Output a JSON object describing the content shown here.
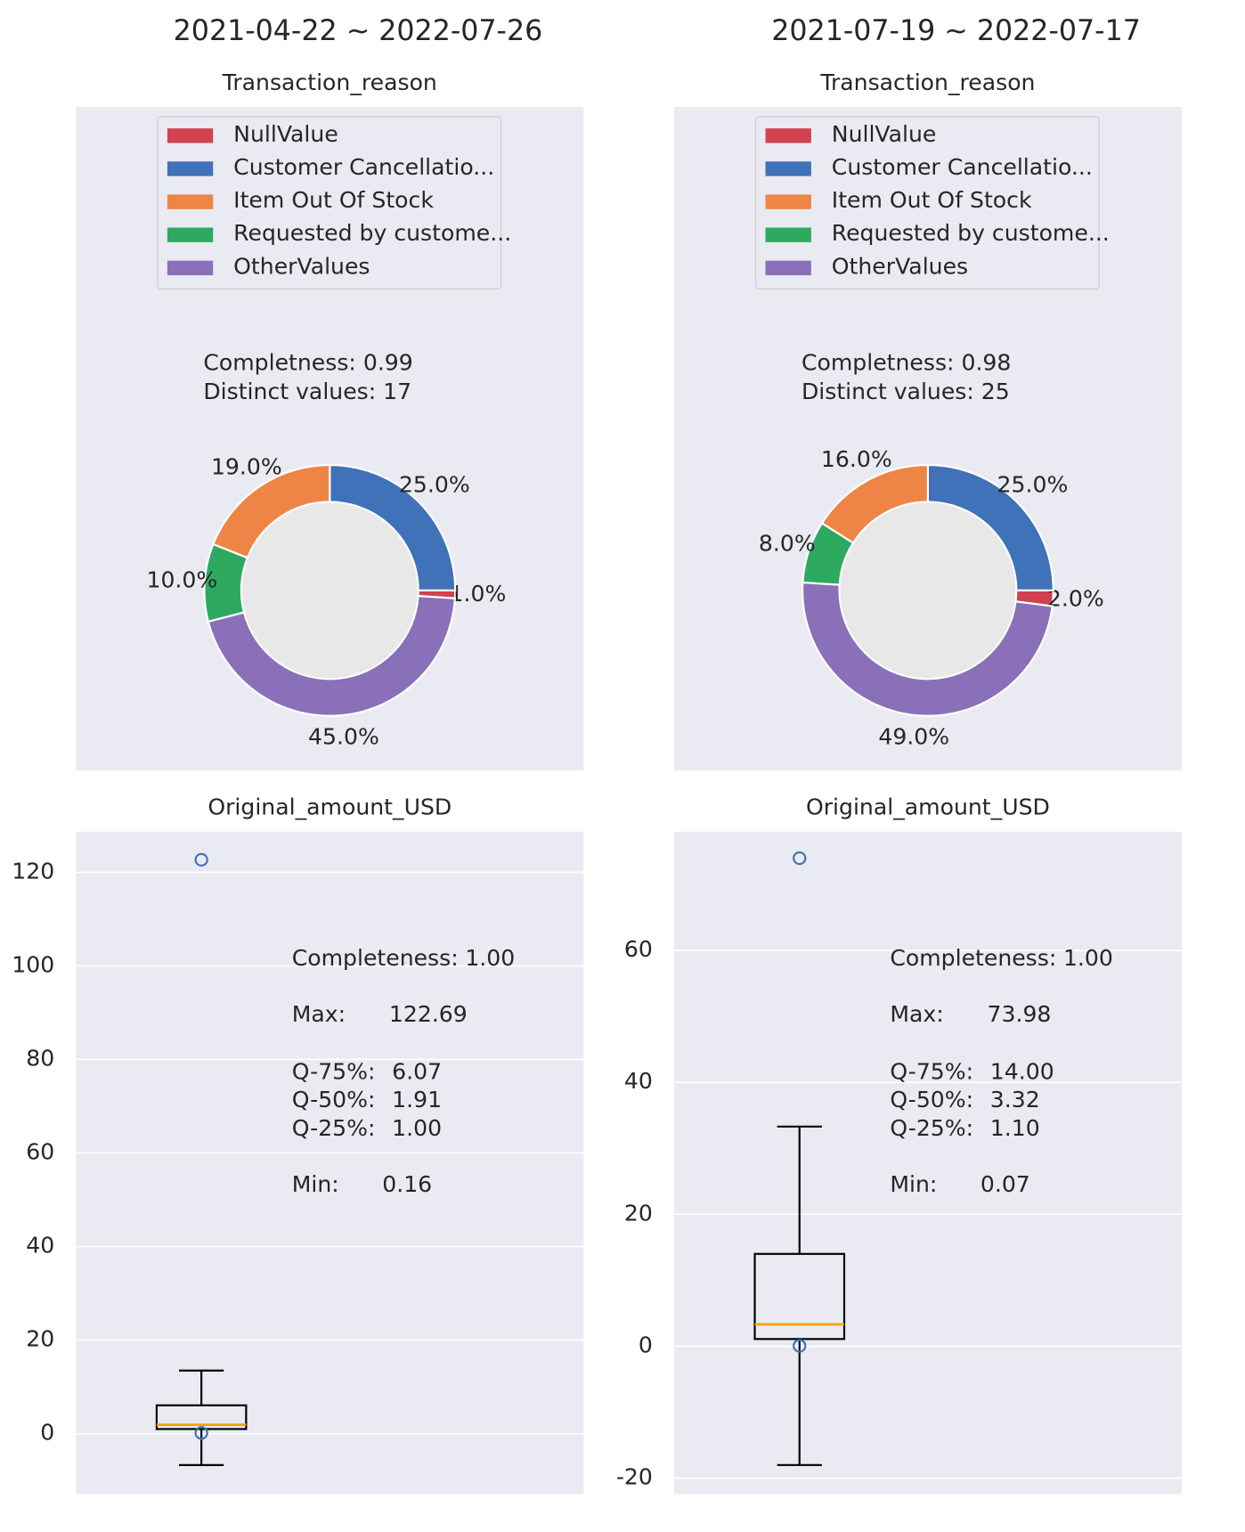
{
  "chart_data": [
    {
      "type": "pie",
      "suptitle": "2021-04-22 ~ 2022-07-26",
      "title": "Transaction_reason",
      "categories": [
        "NullValue",
        "Customer Cancellatio...",
        "Item Out Of Stock",
        "Requested by custome...",
        "OtherValues"
      ],
      "values": [
        1,
        25,
        19,
        10,
        45
      ],
      "value_labels": [
        "1.0%",
        "25.0%",
        "19.0%",
        "10.0%",
        "45.0%"
      ],
      "colors": [
        "#d0424f",
        "#3f72b8",
        "#ee8546",
        "#2eaa60",
        "#8a70b8"
      ],
      "annotations": [
        "Completness: 0.99",
        "Distinct values: 17"
      ]
    },
    {
      "type": "pie",
      "suptitle": "2021-07-19 ~ 2022-07-17",
      "title": "Transaction_reason",
      "categories": [
        "NullValue",
        "Customer Cancellatio...",
        "Item Out Of Stock",
        "Requested by custome...",
        "OtherValues"
      ],
      "values": [
        2,
        25,
        16,
        8,
        49
      ],
      "value_labels": [
        "2.0%",
        "25.0%",
        "16.0%",
        "8.0%",
        "49.0%"
      ],
      "colors": [
        "#d0424f",
        "#3f72b8",
        "#ee8546",
        "#2eaa60",
        "#8a70b8"
      ],
      "annotations": [
        "Completness: 0.98",
        "Distinct values: 25"
      ]
    },
    {
      "type": "box",
      "title": "Original_amount_USD",
      "q1": 1.0,
      "median": 1.91,
      "q3": 6.07,
      "whislo": -6.7,
      "whishi": 13.5,
      "fliers": [
        122.69,
        0.16
      ],
      "ylim": [
        -12.9,
        128.7
      ],
      "yticks": [
        0,
        20,
        40,
        60,
        80,
        100,
        120
      ],
      "grid": true,
      "stats": [
        {
          "label": "Completeness:",
          "value": "1.00"
        },
        {
          "label": "Max:",
          "value": "122.69"
        },
        {
          "label": "Q-75%:",
          "value": "6.07"
        },
        {
          "label": "Q-50%:",
          "value": "1.91"
        },
        {
          "label": "Q-25%:",
          "value": "1.00"
        },
        {
          "label": "Min:",
          "value": "0.16"
        }
      ]
    },
    {
      "type": "box",
      "title": "Original_amount_USD",
      "q1": 1.1,
      "median": 3.32,
      "q3": 14.0,
      "whislo": -18.0,
      "whishi": 33.3,
      "fliers": [
        73.98,
        0.07
      ],
      "ylim": [
        -22.4,
        78.0
      ],
      "yticks": [
        -20,
        0,
        20,
        40,
        60
      ],
      "grid": true,
      "stats": [
        {
          "label": "Completeness:",
          "value": "1.00"
        },
        {
          "label": "Max:",
          "value": "73.98"
        },
        {
          "label": "Q-75%:",
          "value": "14.00"
        },
        {
          "label": "Q-50%:",
          "value": "3.32"
        },
        {
          "label": "Q-25%:",
          "value": "1.10"
        },
        {
          "label": "Min:",
          "value": "0.07"
        }
      ]
    }
  ]
}
